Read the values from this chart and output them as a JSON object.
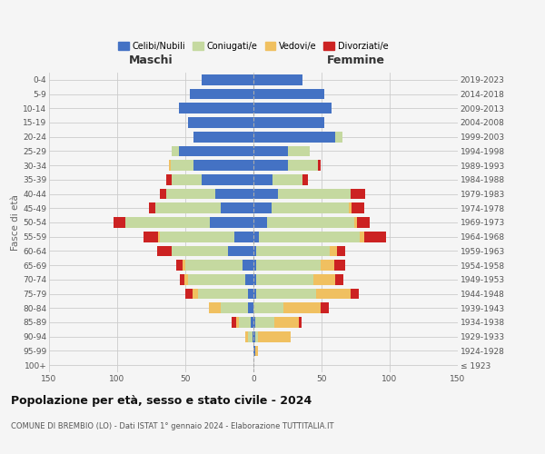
{
  "age_groups": [
    "100+",
    "95-99",
    "90-94",
    "85-89",
    "80-84",
    "75-79",
    "70-74",
    "65-69",
    "60-64",
    "55-59",
    "50-54",
    "45-49",
    "40-44",
    "35-39",
    "30-34",
    "25-29",
    "20-24",
    "15-19",
    "10-14",
    "5-9",
    "0-4"
  ],
  "birth_years": [
    "≤ 1923",
    "1924-1928",
    "1929-1933",
    "1934-1938",
    "1939-1943",
    "1944-1948",
    "1949-1953",
    "1954-1958",
    "1959-1963",
    "1964-1968",
    "1969-1973",
    "1974-1978",
    "1979-1983",
    "1984-1988",
    "1989-1993",
    "1994-1998",
    "1999-2003",
    "2004-2008",
    "2009-2013",
    "2014-2018",
    "2019-2023"
  ],
  "colors": {
    "celibe": "#4472c4",
    "coniugato": "#c5d9a0",
    "vedovo": "#f0c060",
    "divorziato": "#cc2222"
  },
  "maschi": {
    "celibe": [
      0,
      0,
      1,
      2,
      4,
      4,
      6,
      8,
      19,
      14,
      32,
      24,
      28,
      38,
      44,
      55,
      44,
      48,
      55,
      47,
      38
    ],
    "coniugato": [
      0,
      0,
      3,
      9,
      20,
      37,
      42,
      42,
      41,
      55,
      62,
      48,
      36,
      22,
      17,
      5,
      0,
      0,
      0,
      0,
      0
    ],
    "vedovo": [
      0,
      0,
      2,
      2,
      9,
      4,
      3,
      2,
      0,
      1,
      0,
      0,
      0,
      0,
      1,
      0,
      0,
      0,
      0,
      0,
      0
    ],
    "divorziato": [
      0,
      0,
      0,
      3,
      0,
      5,
      3,
      5,
      11,
      11,
      9,
      5,
      5,
      4,
      0,
      0,
      0,
      0,
      0,
      0,
      0
    ]
  },
  "femmine": {
    "nubile": [
      0,
      1,
      1,
      1,
      0,
      2,
      2,
      2,
      2,
      4,
      10,
      13,
      18,
      14,
      25,
      25,
      60,
      52,
      57,
      52,
      36
    ],
    "coniugata": [
      0,
      0,
      2,
      14,
      22,
      44,
      42,
      47,
      54,
      74,
      64,
      57,
      53,
      22,
      22,
      16,
      5,
      0,
      0,
      0,
      0
    ],
    "vedova": [
      0,
      2,
      24,
      18,
      27,
      25,
      16,
      10,
      5,
      3,
      2,
      2,
      0,
      0,
      0,
      0,
      0,
      0,
      0,
      0,
      0
    ],
    "divorziata": [
      0,
      0,
      0,
      2,
      6,
      6,
      6,
      8,
      6,
      16,
      9,
      9,
      11,
      4,
      2,
      0,
      0,
      0,
      0,
      0,
      0
    ]
  },
  "xlim": 150,
  "title": "Popolazione per età, sesso e stato civile - 2024",
  "subtitle": "COMUNE DI BREMBIO (LO) - Dati ISTAT 1° gennaio 2024 - Elaborazione TUTTITALIA.IT",
  "ylabel_left": "Fasce di età",
  "xlabel_left": "Maschi",
  "xlabel_right": "Femmine",
  "legend_labels": [
    "Celibi/Nubili",
    "Coniugati/e",
    "Vedovi/e",
    "Divorziati/e"
  ],
  "legend_colors": [
    "#4472c4",
    "#c5d9a0",
    "#f0c060",
    "#cc2222"
  ],
  "bar_height": 0.75,
  "bg_color": "#f5f5f5",
  "grid_color": "#cccccc"
}
